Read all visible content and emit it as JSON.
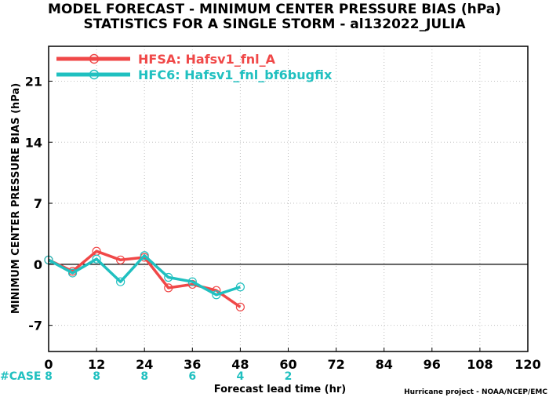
{
  "title_line1": "MODEL FORECAST - MINIMUM CENTER PRESSURE BIAS (hPa)",
  "title_line2": "STATISTICS FOR A SINGLE STORM - al132022_JULIA",
  "credit": "Hurricane project - NOAA/NCEP/EMC",
  "case_label": "#CASE",
  "colors": {
    "hfsa": "#f04848",
    "hfc6": "#20c0c0",
    "case": "#20c0c0",
    "zero_line": "#000000",
    "grid": "#c0c0c0"
  },
  "chart_data": {
    "type": "line",
    "xlabel": "Forecast lead time (hr)",
    "ylabel": "MINIMUM CENTER PRESSURE BIAS (hPa)",
    "xlim": [
      0,
      120
    ],
    "ylim": [
      -10,
      25
    ],
    "x_ticks": [
      0,
      12,
      24,
      36,
      48,
      60,
      72,
      84,
      96,
      108,
      120
    ],
    "y_ticks": [
      -7,
      0,
      7,
      14,
      21
    ],
    "grid": true,
    "legend_position": "top-left",
    "x": [
      0,
      6,
      12,
      18,
      24,
      30,
      36,
      42,
      48
    ],
    "series": [
      {
        "name": "HFSA: Hafsv1_fnl_A",
        "color": "#f04848",
        "values": [
          0.5,
          -0.8,
          1.5,
          0.5,
          0.8,
          -2.7,
          -2.3,
          -3.0,
          -4.9
        ]
      },
      {
        "name": "HFC6: Hafsv1_fnl_bf6bugfix",
        "color": "#20c0c0",
        "values": [
          0.5,
          -1.0,
          0.6,
          -2.0,
          1.0,
          -1.5,
          -2.0,
          -3.5,
          -2.6
        ]
      }
    ],
    "cases": [
      {
        "x": 0,
        "n": "8"
      },
      {
        "x": 12,
        "n": "8"
      },
      {
        "x": 24,
        "n": "8"
      },
      {
        "x": 36,
        "n": "6"
      },
      {
        "x": 48,
        "n": "4"
      },
      {
        "x": 60,
        "n": "2"
      }
    ]
  }
}
